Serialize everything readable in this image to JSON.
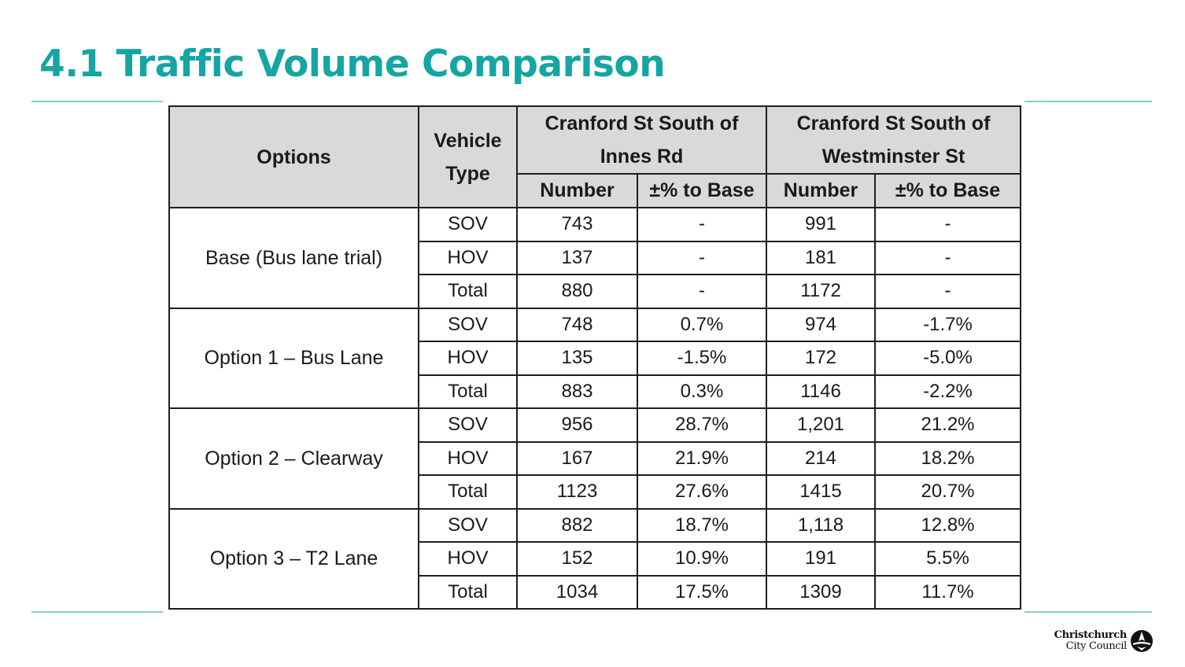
{
  "title": "4.1 Traffic Volume Comparison",
  "table": {
    "header": {
      "options": "Options",
      "vehicle_type": "Vehicle Type",
      "location_1": "Cranford St South of Innes Rd",
      "location_2": "Cranford St South of Westminster St",
      "number": "Number",
      "pct_to_base": "±% to Base"
    },
    "groups": [
      {
        "option": "Base (Bus lane trial)",
        "rows": [
          {
            "type": "SOV",
            "n1": "743",
            "p1": "-",
            "n2": "991",
            "p2": "-"
          },
          {
            "type": "HOV",
            "n1": "137",
            "p1": "-",
            "n2": "181",
            "p2": "-"
          },
          {
            "type": "Total",
            "n1": "880",
            "p1": "-",
            "n2": "1172",
            "p2": "-"
          }
        ]
      },
      {
        "option": "Option 1 – Bus Lane",
        "rows": [
          {
            "type": "SOV",
            "n1": "748",
            "p1": "0.7%",
            "n2": "974",
            "p2": "-1.7%"
          },
          {
            "type": "HOV",
            "n1": "135",
            "p1": "-1.5%",
            "n2": "172",
            "p2": "-5.0%"
          },
          {
            "type": "Total",
            "n1": "883",
            "p1": "0.3%",
            "n2": "1146",
            "p2": "-2.2%"
          }
        ]
      },
      {
        "option": "Option 2 – Clearway",
        "rows": [
          {
            "type": "SOV",
            "n1": "956",
            "p1": "28.7%",
            "n2": "1,201",
            "p2": "21.2%"
          },
          {
            "type": "HOV",
            "n1": "167",
            "p1": "21.9%",
            "n2": "214",
            "p2": "18.2%"
          },
          {
            "type": "Total",
            "n1": "1123",
            "p1": "27.6%",
            "n2": "1415",
            "p2": "20.7%"
          }
        ]
      },
      {
        "option": "Option 3 – T2 Lane",
        "rows": [
          {
            "type": "SOV",
            "n1": "882",
            "p1": "18.7%",
            "n2": "1,118",
            "p2": "12.8%"
          },
          {
            "type": "HOV",
            "n1": "152",
            "p1": "10.9%",
            "n2": "191",
            "p2": "5.5%"
          },
          {
            "type": "Total",
            "n1": "1034",
            "p1": "17.5%",
            "n2": "1309",
            "p2": "11.7%"
          }
        ]
      }
    ]
  },
  "logo": {
    "line1": "Christchurch",
    "line2": "City Council"
  },
  "colors": {
    "title": "#15a5a3",
    "accent_rule": "#7fd0cd",
    "header_fill": "#d9d9d9",
    "border": "#1e1e1e"
  }
}
